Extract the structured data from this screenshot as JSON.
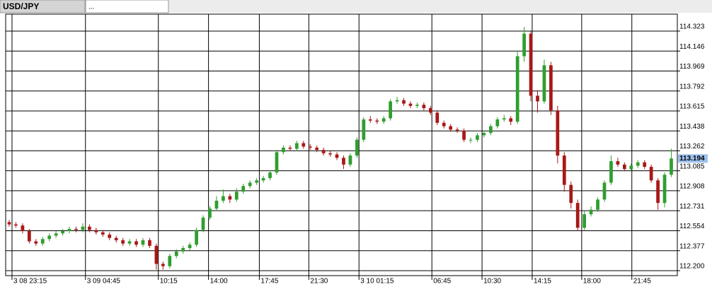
{
  "chart_data": {
    "type": "candlestick",
    "title": "USD/JPY",
    "second_tab": "...",
    "up_color": "#2f9e2f",
    "down_color": "#a81818",
    "grid": true,
    "ylim": [
      112.156,
      114.473
    ],
    "yticks": [
      {
        "value": 112.2,
        "label": "112.200"
      },
      112.377,
      112.554,
      112.731,
      112.908,
      113.085,
      113.262,
      113.438,
      113.615,
      113.792,
      113.969,
      114.146,
      114.323
    ],
    "xlim": [
      -0.53,
      99.9
    ],
    "xticks": [
      {
        "value": 0.42,
        "label": "3 08 23:15"
      },
      {
        "value": 11.4,
        "label": "3 09 04:45"
      },
      {
        "value": 22.3,
        "label": "10:15"
      },
      {
        "value": 29.8,
        "label": "14:00"
      },
      {
        "value": 37.4,
        "label": "17:45"
      },
      {
        "value": 44.8,
        "label": "21:30"
      },
      {
        "value": 52.3,
        "label": "3 10 01:15"
      },
      {
        "value": 63.2,
        "label": "06:45"
      },
      {
        "value": 70.7,
        "label": "10:30"
      },
      {
        "value": 78.2,
        "label": "14:15"
      },
      {
        "value": 85.6,
        "label": "18:00"
      },
      {
        "value": 93.1,
        "label": "21:45"
      }
    ],
    "current_price": 113.194,
    "open": [
      112.63,
      112.61,
      112.6,
      112.55,
      112.46,
      112.44,
      112.48,
      112.51,
      112.53,
      112.55,
      112.57,
      112.56,
      112.59,
      112.56,
      112.54,
      112.52,
      112.49,
      112.47,
      112.44,
      112.46,
      112.43,
      112.47,
      112.42,
      112.26,
      112.24,
      112.33,
      112.37,
      112.4,
      112.43,
      112.56,
      112.67,
      112.75,
      112.82,
      112.86,
      112.83,
      112.9,
      112.95,
      112.98,
      113.0,
      113.02,
      113.07,
      113.25,
      113.29,
      113.28,
      113.33,
      113.3,
      113.29,
      113.27,
      113.24,
      113.23,
      113.2,
      113.14,
      113.22,
      113.36,
      113.54,
      113.53,
      113.52,
      113.55,
      113.7,
      113.71,
      113.68,
      113.66,
      113.67,
      113.64,
      113.6,
      113.51,
      113.48,
      113.45,
      113.44,
      113.36,
      113.36,
      113.4,
      113.42,
      113.48,
      113.54,
      113.55,
      113.52,
      114.1,
      114.3,
      113.75,
      113.7,
      114.02,
      113.62,
      113.22,
      112.96,
      112.8,
      112.58,
      112.7,
      112.74,
      112.83,
      112.98,
      113.17,
      113.14,
      113.1,
      113.13,
      113.16,
      113.12,
      113.0,
      112.8,
      113.05
    ],
    "high": [
      112.65,
      112.63,
      112.62,
      112.57,
      112.48,
      112.5,
      112.53,
      112.55,
      112.57,
      112.59,
      112.59,
      112.62,
      112.61,
      112.58,
      112.56,
      112.54,
      112.51,
      112.49,
      112.48,
      112.48,
      112.49,
      112.49,
      112.44,
      112.28,
      112.35,
      112.39,
      112.42,
      112.45,
      112.58,
      112.69,
      112.77,
      112.86,
      112.92,
      112.88,
      112.93,
      112.97,
      113.0,
      113.02,
      113.04,
      113.09,
      113.27,
      113.31,
      113.31,
      113.35,
      113.35,
      113.32,
      113.31,
      113.29,
      113.26,
      113.25,
      113.22,
      113.24,
      113.38,
      113.56,
      113.57,
      113.55,
      113.57,
      113.72,
      113.74,
      113.73,
      113.7,
      113.69,
      113.69,
      113.66,
      113.62,
      113.53,
      113.5,
      113.47,
      113.46,
      113.38,
      113.42,
      113.44,
      113.5,
      113.56,
      113.58,
      113.57,
      114.15,
      114.36,
      114.32,
      113.8,
      114.07,
      114.05,
      113.66,
      113.25,
      112.99,
      112.83,
      112.73,
      112.77,
      112.85,
      113.0,
      113.22,
      113.2,
      113.16,
      113.15,
      113.18,
      113.18,
      113.14,
      113.02,
      113.07,
      113.28
    ],
    "low": [
      112.59,
      112.58,
      112.53,
      112.44,
      112.42,
      112.42,
      112.46,
      112.49,
      112.51,
      112.53,
      112.54,
      112.54,
      112.54,
      112.52,
      112.5,
      112.47,
      112.45,
      112.42,
      112.42,
      112.41,
      112.41,
      112.4,
      112.21,
      112.21,
      112.22,
      112.31,
      112.35,
      112.38,
      112.41,
      112.54,
      112.65,
      112.73,
      112.8,
      112.8,
      112.81,
      112.88,
      112.93,
      112.96,
      112.98,
      113.0,
      113.05,
      113.23,
      113.26,
      113.26,
      113.28,
      113.27,
      113.25,
      113.22,
      113.21,
      113.18,
      113.1,
      113.12,
      113.2,
      113.34,
      113.51,
      113.5,
      113.5,
      113.53,
      113.68,
      113.66,
      113.64,
      113.64,
      113.62,
      113.58,
      113.49,
      113.46,
      113.43,
      113.42,
      113.34,
      113.33,
      113.34,
      113.38,
      113.4,
      113.46,
      113.52,
      113.49,
      113.5,
      114.05,
      113.7,
      113.6,
      113.68,
      113.58,
      113.15,
      112.9,
      112.75,
      112.55,
      112.56,
      112.68,
      112.72,
      112.81,
      112.96,
      113.12,
      113.08,
      113.08,
      113.11,
      113.1,
      112.98,
      112.74,
      112.76,
      113.03
    ],
    "close": [
      112.61,
      112.6,
      112.55,
      112.46,
      112.44,
      112.48,
      112.51,
      112.53,
      112.55,
      112.57,
      112.56,
      112.59,
      112.56,
      112.54,
      112.52,
      112.49,
      112.47,
      112.44,
      112.46,
      112.43,
      112.47,
      112.42,
      112.26,
      112.24,
      112.33,
      112.37,
      112.4,
      112.43,
      112.56,
      112.67,
      112.75,
      112.82,
      112.86,
      112.83,
      112.9,
      112.95,
      112.98,
      113.0,
      113.02,
      113.07,
      113.25,
      113.29,
      113.28,
      113.33,
      113.3,
      113.29,
      113.27,
      113.24,
      113.23,
      113.2,
      113.14,
      113.22,
      113.36,
      113.54,
      113.53,
      113.52,
      113.55,
      113.7,
      113.71,
      113.68,
      113.66,
      113.67,
      113.64,
      113.6,
      113.51,
      113.48,
      113.45,
      113.44,
      113.36,
      113.36,
      113.4,
      113.42,
      113.48,
      113.54,
      113.55,
      113.52,
      114.1,
      114.3,
      113.75,
      113.7,
      114.02,
      113.62,
      113.22,
      112.96,
      112.8,
      112.58,
      112.7,
      112.74,
      112.83,
      112.98,
      113.17,
      113.14,
      113.1,
      113.13,
      113.16,
      113.12,
      113.0,
      112.8,
      113.05,
      113.194
    ]
  }
}
